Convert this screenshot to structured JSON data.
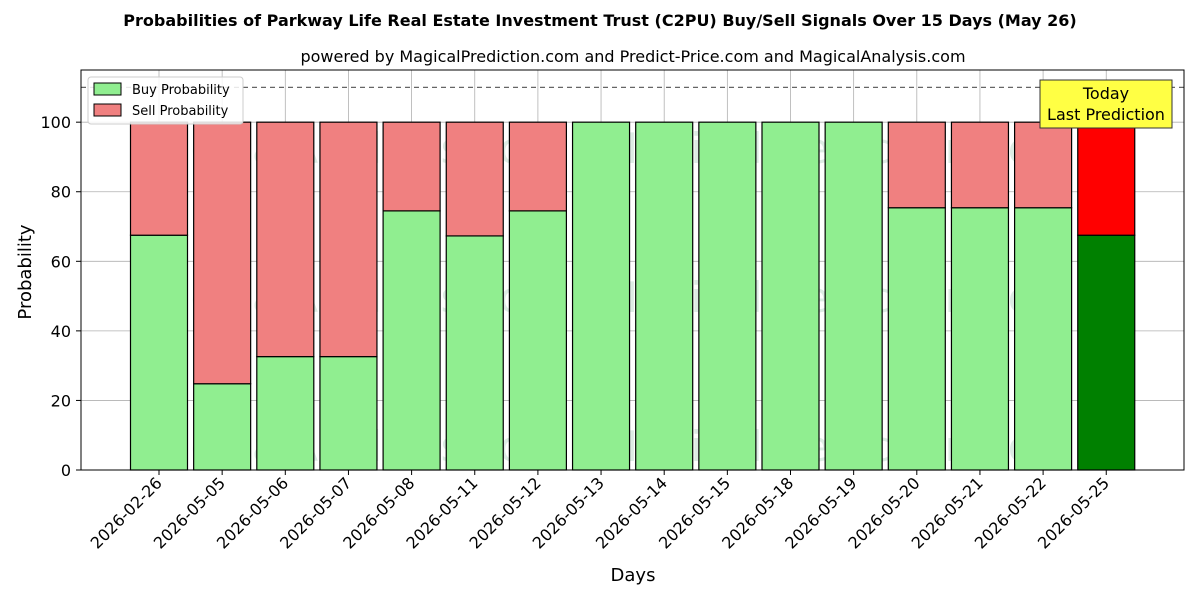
{
  "chart_data": {
    "type": "bar",
    "stacked": true,
    "title": "Probabilities of Parkway Life Real Estate Investment Trust (C2PU) Buy/Sell Signals Over 15 Days (May 26)",
    "subtitle": "powered by MagicalPrediction.com and Predict-Price.com and MagicalAnalysis.com",
    "xlabel": "Days",
    "ylabel": "Probability",
    "ylim": [
      0,
      115
    ],
    "yticks": [
      0,
      20,
      40,
      60,
      80,
      100
    ],
    "grid": true,
    "legend_position": "top-left",
    "reference_line": 110,
    "categories": [
      "2026-02-26",
      "2026-05-05",
      "2026-05-06",
      "2026-05-07",
      "2026-05-08",
      "2026-05-11",
      "2026-05-12",
      "2026-05-13",
      "2026-05-14",
      "2026-05-15",
      "2026-05-18",
      "2026-05-19",
      "2026-05-20",
      "2026-05-21",
      "2026-05-22",
      "2026-05-25"
    ],
    "series": [
      {
        "name": "Buy Probability",
        "color": "#90ee90",
        "highlight_color": "#008000",
        "values": [
          67.5,
          24.8,
          32.6,
          32.6,
          74.5,
          67.3,
          74.5,
          100,
          100,
          100,
          100,
          100,
          75.4,
          75.4,
          75.4,
          67.5
        ]
      },
      {
        "name": "Sell Probability",
        "color": "#f08080",
        "highlight_color": "#ff0000",
        "values": [
          32.5,
          75.2,
          67.4,
          67.4,
          25.5,
          32.7,
          25.5,
          0,
          0,
          0,
          0,
          0,
          24.6,
          24.6,
          24.6,
          32.5
        ]
      }
    ],
    "highlight_index": 15,
    "annotation": {
      "lines": [
        "Today",
        "Last Prediction"
      ],
      "background": "#ffff44"
    },
    "watermarks": [
      "MagicalAnalysis.com",
      "MagicalPrediction.com"
    ]
  }
}
